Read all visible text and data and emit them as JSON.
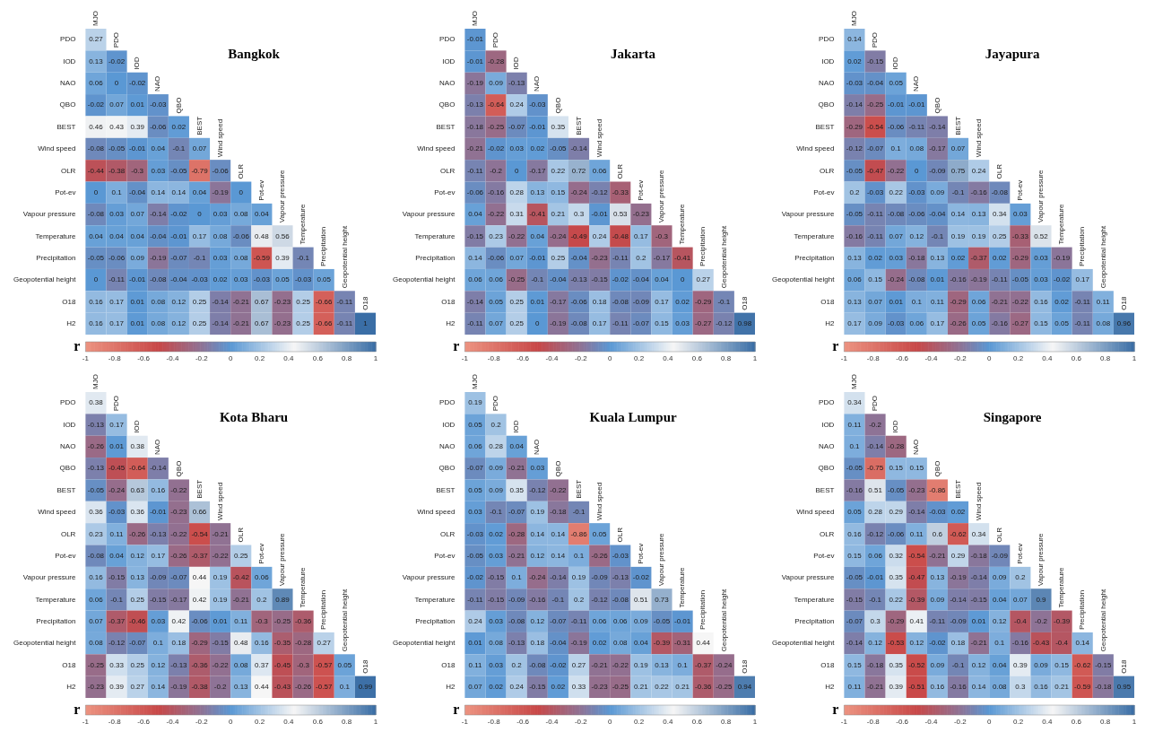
{
  "chart_data": [
    {
      "type": "heatmap",
      "title": "Bangkok",
      "clabel": "r",
      "clim": [
        -1,
        1
      ],
      "cticks": [
        -1,
        -0.8,
        -0.6,
        -0.4,
        -0.2,
        0,
        0.2,
        0.4,
        0.6,
        0.8,
        1
      ],
      "data_labels": true,
      "categories": [
        "MJO",
        "PDO",
        "IOD",
        "NAO",
        "QBO",
        "BEST",
        "Wind speed",
        "OLR",
        "Pot-ev",
        "Vapour pressure",
        "Temperature",
        "Precipitation",
        "Geopotential height",
        "O18"
      ],
      "y_categories": [
        "PDO",
        "IOD",
        "NAO",
        "QBO",
        "BEST",
        "Wind speed",
        "OLR",
        "Pot-ev",
        "Vapour pressure",
        "Temperature",
        "Precipitation",
        "Geopotential height",
        "O18",
        "H2"
      ],
      "cells": [
        [
          0.27,
          null,
          null,
          null,
          null,
          null,
          null,
          null,
          null,
          null,
          null,
          null,
          null,
          null
        ],
        [
          0.13,
          -0.02,
          null,
          null,
          null,
          null,
          null,
          null,
          null,
          null,
          null,
          null,
          null,
          null
        ],
        [
          0.06,
          0,
          -0.02,
          null,
          null,
          null,
          null,
          null,
          null,
          null,
          null,
          null,
          null,
          null
        ],
        [
          -0.02,
          0.07,
          0.01,
          -0.03,
          null,
          null,
          null,
          null,
          null,
          null,
          null,
          null,
          null,
          null
        ],
        [
          0.46,
          0.43,
          0.39,
          -0.06,
          0.02,
          null,
          null,
          null,
          null,
          null,
          null,
          null,
          null,
          null
        ],
        [
          -0.08,
          -0.05,
          -0.01,
          0.04,
          -0.1,
          0.07,
          null,
          null,
          null,
          null,
          null,
          null,
          null,
          null
        ],
        [
          -0.44,
          -0.38,
          -0.3,
          0.03,
          -0.05,
          -0.79,
          -0.06,
          null,
          null,
          null,
          null,
          null,
          null,
          null
        ],
        [
          0,
          0.1,
          -0.04,
          0.14,
          0.14,
          0.04,
          -0.19,
          0,
          null,
          null,
          null,
          null,
          null,
          null
        ],
        [
          -0.08,
          0.03,
          0.07,
          -0.14,
          -0.02,
          0,
          0.03,
          0.08,
          0.04,
          null,
          null,
          null,
          null,
          null
        ],
        [
          0.04,
          0.04,
          0.04,
          -0.04,
          -0.01,
          0.17,
          0.08,
          -0.06,
          0.48,
          0.56,
          null,
          null,
          null,
          null
        ],
        [
          -0.05,
          -0.06,
          0.09,
          -0.19,
          -0.07,
          -0.1,
          0.03,
          0.08,
          -0.59,
          0.39,
          -0.1,
          null,
          null,
          null
        ],
        [
          0,
          -0.11,
          -0.01,
          -0.08,
          -0.04,
          -0.03,
          0.02,
          0.03,
          -0.03,
          0.05,
          -0.03,
          0.05,
          null,
          null
        ],
        [
          0.16,
          0.17,
          0.01,
          0.08,
          0.12,
          0.25,
          -0.14,
          -0.21,
          0.67,
          -0.23,
          0.25,
          -0.66,
          -0.11,
          null
        ],
        [
          0.16,
          0.17,
          0.01,
          0.08,
          0.12,
          0.25,
          -0.14,
          -0.21,
          0.67,
          -0.23,
          0.25,
          -0.66,
          -0.11,
          1
        ]
      ]
    },
    {
      "type": "heatmap",
      "title": "Jakarta",
      "clabel": "r",
      "clim": [
        -1,
        1
      ],
      "cticks": [
        -1,
        -0.8,
        -0.6,
        -0.4,
        -0.2,
        0,
        0.2,
        0.4,
        0.6,
        0.8,
        1
      ],
      "data_labels": true,
      "categories": [
        "MJO",
        "PDO",
        "IOD",
        "NAO",
        "QBO",
        "BEST",
        "Wind speed",
        "OLR",
        "Pot-ev",
        "Vapour pressure",
        "Temperature",
        "Precipitation",
        "Geopotential height",
        "O18"
      ],
      "y_categories": [
        "PDO",
        "IOD",
        "NAO",
        "QBO",
        "BEST",
        "Wind speed",
        "OLR",
        "Pot-ev",
        "Vapour pressure",
        "Temperature",
        "Precipitation",
        "Geopotential height",
        "O18",
        "H2"
      ],
      "cells": [
        [
          -0.01,
          null,
          null,
          null,
          null,
          null,
          null,
          null,
          null,
          null,
          null,
          null,
          null,
          null
        ],
        [
          -0.01,
          -0.28,
          null,
          null,
          null,
          null,
          null,
          null,
          null,
          null,
          null,
          null,
          null,
          null
        ],
        [
          -0.19,
          0.09,
          -0.13,
          null,
          null,
          null,
          null,
          null,
          null,
          null,
          null,
          null,
          null,
          null
        ],
        [
          -0.13,
          -0.64,
          0.24,
          -0.03,
          null,
          null,
          null,
          null,
          null,
          null,
          null,
          null,
          null,
          null
        ],
        [
          -0.18,
          -0.25,
          -0.07,
          -0.01,
          0.35,
          null,
          null,
          null,
          null,
          null,
          null,
          null,
          null,
          null
        ],
        [
          -0.21,
          -0.02,
          0.03,
          0.02,
          -0.05,
          -0.14,
          null,
          null,
          null,
          null,
          null,
          null,
          null,
          null
        ],
        [
          -0.11,
          -0.2,
          0,
          -0.17,
          0.22,
          0.72,
          0.06,
          null,
          null,
          null,
          null,
          null,
          null,
          null
        ],
        [
          -0.06,
          -0.16,
          0.28,
          0.13,
          0.15,
          -0.24,
          -0.12,
          -0.33,
          null,
          null,
          null,
          null,
          null,
          null
        ],
        [
          0.04,
          -0.22,
          0.31,
          -0.41,
          0.21,
          0.3,
          -0.01,
          0.53,
          -0.23,
          null,
          null,
          null,
          null,
          null
        ],
        [
          -0.15,
          0.23,
          -0.22,
          0.04,
          -0.24,
          -0.49,
          0.24,
          -0.48,
          0.17,
          -0.3,
          null,
          null,
          null,
          null
        ],
        [
          0.14,
          -0.06,
          0.07,
          -0.01,
          0.25,
          -0.04,
          -0.23,
          -0.11,
          0.2,
          -0.17,
          -0.41,
          null,
          null,
          null
        ],
        [
          0.06,
          0.06,
          -0.25,
          -0.1,
          -0.04,
          -0.13,
          -0.15,
          -0.02,
          -0.04,
          0.04,
          0,
          0.27,
          null,
          null
        ],
        [
          -0.14,
          0.05,
          0.25,
          0.01,
          -0.17,
          -0.06,
          0.18,
          -0.08,
          -0.09,
          0.17,
          0.02,
          -0.29,
          -0.1,
          null
        ],
        [
          -0.11,
          0.07,
          0.25,
          0,
          -0.19,
          -0.08,
          0.17,
          -0.11,
          -0.07,
          0.15,
          0.03,
          -0.27,
          -0.12,
          0.98
        ]
      ]
    },
    {
      "type": "heatmap",
      "title": "Jayapura",
      "clabel": "r",
      "clim": [
        -1,
        1
      ],
      "cticks": [
        -1,
        -0.8,
        -0.6,
        -0.4,
        -0.2,
        0,
        0.2,
        0.4,
        0.6,
        0.8,
        1
      ],
      "data_labels": true,
      "categories": [
        "MJO",
        "PDO",
        "IOD",
        "NAO",
        "QBO",
        "BEST",
        "Wind speed",
        "OLR",
        "Pot-ev",
        "Vapour pressure",
        "Temperature",
        "Precipitation",
        "Geopotential height",
        "O18"
      ],
      "y_categories": [
        "PDO",
        "IOD",
        "NAO",
        "QBO",
        "BEST",
        "Wind speed",
        "OLR",
        "Pot-ev",
        "Vapour pressure",
        "Temperature",
        "Precipitation",
        "Geopotential height",
        "O18",
        "H2"
      ],
      "cells": [
        [
          0.14,
          null,
          null,
          null,
          null,
          null,
          null,
          null,
          null,
          null,
          null,
          null,
          null,
          null
        ],
        [
          0.02,
          -0.15,
          null,
          null,
          null,
          null,
          null,
          null,
          null,
          null,
          null,
          null,
          null,
          null
        ],
        [
          -0.03,
          -0.04,
          0.05,
          null,
          null,
          null,
          null,
          null,
          null,
          null,
          null,
          null,
          null,
          null
        ],
        [
          -0.14,
          -0.25,
          -0.01,
          -0.01,
          null,
          null,
          null,
          null,
          null,
          null,
          null,
          null,
          null,
          null
        ],
        [
          -0.29,
          -0.54,
          -0.06,
          -0.11,
          -0.14,
          null,
          null,
          null,
          null,
          null,
          null,
          null,
          null,
          null
        ],
        [
          -0.12,
          -0.07,
          0.1,
          0.08,
          -0.17,
          0.07,
          null,
          null,
          null,
          null,
          null,
          null,
          null,
          null
        ],
        [
          -0.05,
          -0.47,
          -0.22,
          0,
          -0.09,
          0.75,
          0.24,
          null,
          null,
          null,
          null,
          null,
          null,
          null
        ],
        [
          0.2,
          -0.03,
          0.22,
          -0.03,
          0.09,
          -0.1,
          -0.16,
          -0.08,
          null,
          null,
          null,
          null,
          null,
          null
        ],
        [
          -0.05,
          -0.11,
          -0.08,
          -0.06,
          -0.04,
          0.14,
          0.13,
          0.34,
          0.03,
          null,
          null,
          null,
          null,
          null
        ],
        [
          -0.16,
          -0.11,
          0.07,
          0.12,
          -0.1,
          0.19,
          0.19,
          0.25,
          -0.33,
          0.52,
          null,
          null,
          null,
          null
        ],
        [
          0.13,
          0.02,
          0.03,
          -0.18,
          0.13,
          0.02,
          -0.37,
          0.02,
          -0.29,
          0.03,
          -0.19,
          null,
          null,
          null
        ],
        [
          0.06,
          0.15,
          -0.24,
          -0.08,
          0.01,
          -0.16,
          -0.19,
          -0.11,
          -0.05,
          0.03,
          -0.02,
          0.17,
          null,
          null
        ],
        [
          0.13,
          0.07,
          0.01,
          0.1,
          0.11,
          -0.29,
          0.06,
          -0.21,
          -0.22,
          0.16,
          0.02,
          -0.11,
          0.11,
          null
        ],
        [
          0.17,
          0.09,
          -0.03,
          0.06,
          0.17,
          -0.26,
          0.05,
          -0.16,
          -0.27,
          0.15,
          0.05,
          -0.11,
          0.08,
          0.96
        ]
      ]
    },
    {
      "type": "heatmap",
      "title": "Kota Bharu",
      "clabel": "r",
      "clim": [
        -1,
        1
      ],
      "cticks": [
        -1,
        -0.8,
        -0.6,
        -0.4,
        -0.2,
        0,
        0.2,
        0.4,
        0.6,
        0.8,
        1
      ],
      "data_labels": true,
      "categories": [
        "MJO",
        "PDO",
        "IOD",
        "NAO",
        "QBO",
        "BEST",
        "Wind speed",
        "OLR",
        "Pot-ev",
        "Vapour pressure",
        "Temperature",
        "Precipitation",
        "Geopotential height",
        "O18"
      ],
      "y_categories": [
        "PDO",
        "IOD",
        "NAO",
        "QBO",
        "BEST",
        "Wind speed",
        "OLR",
        "Pot-ev",
        "Vapour pressure",
        "Temperature",
        "Precipitation",
        "Geopotential height",
        "O18",
        "H2"
      ],
      "cells": [
        [
          0.38,
          null,
          null,
          null,
          null,
          null,
          null,
          null,
          null,
          null,
          null,
          null,
          null,
          null
        ],
        [
          -0.13,
          0.17,
          null,
          null,
          null,
          null,
          null,
          null,
          null,
          null,
          null,
          null,
          null,
          null
        ],
        [
          -0.26,
          0.01,
          0.38,
          null,
          null,
          null,
          null,
          null,
          null,
          null,
          null,
          null,
          null,
          null
        ],
        [
          -0.13,
          -0.45,
          -0.64,
          -0.14,
          null,
          null,
          null,
          null,
          null,
          null,
          null,
          null,
          null,
          null
        ],
        [
          -0.05,
          -0.24,
          0.63,
          0.16,
          -0.22,
          null,
          null,
          null,
          null,
          null,
          null,
          null,
          null,
          null
        ],
        [
          0.36,
          -0.03,
          0.36,
          -0.01,
          -0.23,
          0.66,
          null,
          null,
          null,
          null,
          null,
          null,
          null,
          null
        ],
        [
          0.23,
          0.11,
          -0.26,
          -0.13,
          -0.22,
          -0.54,
          -0.21,
          null,
          null,
          null,
          null,
          null,
          null,
          null
        ],
        [
          -0.08,
          0.04,
          0.12,
          0.17,
          -0.26,
          -0.37,
          -0.22,
          0.25,
          null,
          null,
          null,
          null,
          null,
          null
        ],
        [
          0.16,
          -0.15,
          0.13,
          -0.09,
          -0.07,
          0.44,
          0.19,
          -0.42,
          0.06,
          null,
          null,
          null,
          null,
          null
        ],
        [
          0.06,
          -0.1,
          0.25,
          -0.15,
          -0.17,
          0.42,
          0.19,
          -0.21,
          0.2,
          0.89,
          null,
          null,
          null,
          null
        ],
        [
          0.07,
          -0.37,
          -0.46,
          0.03,
          0.42,
          -0.06,
          0.01,
          0.11,
          -0.3,
          -0.25,
          -0.36,
          null,
          null,
          null
        ],
        [
          0.08,
          -0.12,
          -0.07,
          0.1,
          0.18,
          -0.29,
          -0.15,
          0.48,
          0.16,
          -0.35,
          -0.28,
          0.27,
          null,
          null
        ],
        [
          -0.25,
          0.33,
          0.25,
          0.12,
          -0.13,
          -0.36,
          -0.22,
          0.08,
          0.37,
          -0.45,
          -0.3,
          -0.57,
          0.05,
          null
        ],
        [
          -0.23,
          0.39,
          0.27,
          0.14,
          -0.19,
          -0.38,
          -0.2,
          0.13,
          0.44,
          -0.43,
          -0.26,
          -0.57,
          0.1,
          0.99
        ]
      ]
    },
    {
      "type": "heatmap",
      "title": "Kuala Lumpur",
      "clabel": "r",
      "clim": [
        -1,
        1
      ],
      "cticks": [
        -1,
        -0.8,
        -0.6,
        -0.4,
        -0.2,
        0,
        0.2,
        0.4,
        0.6,
        0.8,
        1
      ],
      "data_labels": true,
      "categories": [
        "MJO",
        "PDO",
        "IOD",
        "NAO",
        "QBO",
        "BEST",
        "Wind speed",
        "OLR",
        "Pot-ev",
        "Vapour pressure",
        "Temperature",
        "Precipitation",
        "Geopotential height",
        "O18"
      ],
      "y_categories": [
        "PDO",
        "IOD",
        "NAO",
        "QBO",
        "BEST",
        "Wind speed",
        "OLR",
        "Pot-ev",
        "Vapour pressure",
        "Temperature",
        "Precipitation",
        "Geopotential height",
        "O18",
        "H2"
      ],
      "cells": [
        [
          0.19,
          null,
          null,
          null,
          null,
          null,
          null,
          null,
          null,
          null,
          null,
          null,
          null,
          null
        ],
        [
          0.05,
          0.2,
          null,
          null,
          null,
          null,
          null,
          null,
          null,
          null,
          null,
          null,
          null,
          null
        ],
        [
          0.06,
          0.28,
          0.04,
          null,
          null,
          null,
          null,
          null,
          null,
          null,
          null,
          null,
          null,
          null
        ],
        [
          -0.07,
          0.09,
          -0.21,
          0.03,
          null,
          null,
          null,
          null,
          null,
          null,
          null,
          null,
          null,
          null
        ],
        [
          0.05,
          0.09,
          0.35,
          -0.12,
          -0.22,
          null,
          null,
          null,
          null,
          null,
          null,
          null,
          null,
          null
        ],
        [
          0.03,
          -0.1,
          -0.07,
          0.19,
          -0.18,
          -0.1,
          null,
          null,
          null,
          null,
          null,
          null,
          null,
          null
        ],
        [
          -0.03,
          0.02,
          -0.28,
          0.14,
          0.14,
          -0.86,
          0.05,
          null,
          null,
          null,
          null,
          null,
          null,
          null
        ],
        [
          -0.05,
          0.03,
          -0.21,
          0.12,
          0.14,
          0.1,
          -0.26,
          -0.03,
          null,
          null,
          null,
          null,
          null,
          null
        ],
        [
          -0.02,
          -0.15,
          0.1,
          -0.24,
          -0.14,
          0.19,
          -0.09,
          -0.13,
          -0.02,
          null,
          null,
          null,
          null,
          null
        ],
        [
          -0.11,
          -0.15,
          -0.09,
          -0.16,
          -0.1,
          0.2,
          -0.12,
          -0.08,
          0.51,
          0.73,
          null,
          null,
          null,
          null
        ],
        [
          0.24,
          0.03,
          -0.08,
          0.12,
          -0.07,
          -0.11,
          0.06,
          0.06,
          0.09,
          -0.05,
          -0.01,
          null,
          null,
          null
        ],
        [
          0.01,
          0.08,
          -0.13,
          0.18,
          -0.04,
          -0.19,
          0.02,
          0.08,
          0.04,
          -0.39,
          -0.31,
          0.44,
          null,
          null
        ],
        [
          0.11,
          0.03,
          0.2,
          -0.08,
          -0.02,
          0.27,
          -0.21,
          -0.22,
          0.19,
          0.13,
          0.1,
          -0.37,
          -0.24,
          null
        ],
        [
          0.07,
          0.02,
          0.24,
          -0.15,
          0.02,
          0.33,
          -0.23,
          -0.25,
          0.21,
          0.22,
          0.21,
          -0.36,
          -0.25,
          0.94
        ]
      ]
    },
    {
      "type": "heatmap",
      "title": "Singapore",
      "clabel": "r",
      "clim": [
        -1,
        1
      ],
      "cticks": [
        -1,
        -0.8,
        -0.6,
        -0.4,
        -0.2,
        0,
        0.2,
        0.4,
        0.6,
        0.8,
        1
      ],
      "data_labels": true,
      "categories": [
        "MJO",
        "PDO",
        "IOD",
        "NAO",
        "QBO",
        "BEST",
        "Wind speed",
        "OLR",
        "Pot-ev",
        "Vapour pressure",
        "Temperature",
        "Precipitation",
        "Geopotential height",
        "O18"
      ],
      "y_categories": [
        "PDO",
        "IOD",
        "NAO",
        "QBO",
        "BEST",
        "Wind speed",
        "OLR",
        "Pot-ev",
        "Vapour pressure",
        "Temperature",
        "Precipitation",
        "Geopotential height",
        "O18",
        "H2"
      ],
      "cells": [
        [
          0.34,
          null,
          null,
          null,
          null,
          null,
          null,
          null,
          null,
          null,
          null,
          null,
          null,
          null
        ],
        [
          0.11,
          -0.2,
          null,
          null,
          null,
          null,
          null,
          null,
          null,
          null,
          null,
          null,
          null,
          null
        ],
        [
          0.1,
          -0.14,
          -0.28,
          null,
          null,
          null,
          null,
          null,
          null,
          null,
          null,
          null,
          null,
          null
        ],
        [
          -0.05,
          -0.75,
          0.15,
          0.15,
          null,
          null,
          null,
          null,
          null,
          null,
          null,
          null,
          null,
          null
        ],
        [
          -0.16,
          0.51,
          -0.05,
          -0.23,
          -0.86,
          null,
          null,
          null,
          null,
          null,
          null,
          null,
          null,
          null
        ],
        [
          0.05,
          0.28,
          0.29,
          -0.14,
          -0.03,
          0.02,
          null,
          null,
          null,
          null,
          null,
          null,
          null,
          null
        ],
        [
          0.16,
          -0.12,
          -0.06,
          0.11,
          0.6,
          -0.62,
          0.34,
          null,
          null,
          null,
          null,
          null,
          null,
          null
        ],
        [
          0.15,
          0.06,
          0.32,
          -0.54,
          -0.21,
          0.29,
          -0.18,
          -0.09,
          null,
          null,
          null,
          null,
          null,
          null
        ],
        [
          -0.05,
          -0.01,
          0.35,
          -0.47,
          0.13,
          -0.19,
          -0.14,
          0.09,
          0.2,
          null,
          null,
          null,
          null,
          null
        ],
        [
          -0.15,
          -0.1,
          0.22,
          -0.39,
          0.09,
          -0.14,
          -0.15,
          0.04,
          0.07,
          0.9,
          null,
          null,
          null,
          null
        ],
        [
          -0.07,
          0.3,
          -0.29,
          0.41,
          -0.11,
          -0.09,
          0.01,
          0.12,
          -0.4,
          -0.2,
          -0.39,
          null,
          null,
          null
        ],
        [
          -0.14,
          0.12,
          -0.53,
          0.12,
          -0.02,
          0.18,
          -0.21,
          0.1,
          -0.16,
          -0.43,
          -0.4,
          0.14,
          null,
          null
        ],
        [
          0.15,
          -0.18,
          0.35,
          -0.52,
          0.09,
          -0.1,
          0.12,
          0.04,
          0.39,
          0.09,
          0.15,
          -0.62,
          -0.15,
          null
        ],
        [
          0.11,
          -0.21,
          0.39,
          -0.51,
          0.16,
          -0.16,
          0.14,
          0.08,
          0.3,
          0.16,
          0.21,
          -0.59,
          -0.18,
          0.95
        ]
      ]
    }
  ]
}
